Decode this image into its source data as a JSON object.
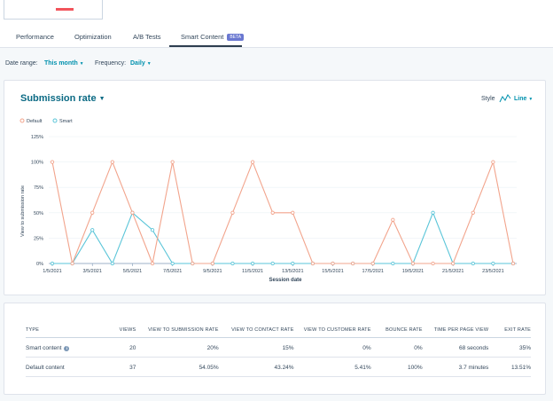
{
  "tabs": [
    {
      "label": "Performance"
    },
    {
      "label": "Optimization"
    },
    {
      "label": "A/B Tests"
    },
    {
      "label": "Smart Content",
      "badge": "BETA"
    }
  ],
  "filters": {
    "date_range_label": "Date range:",
    "date_range_value": "This month",
    "frequency_label": "Frequency:",
    "frequency_value": "Daily"
  },
  "chart_header": {
    "title": "Submission rate",
    "style_label": "Style",
    "style_value": "Line"
  },
  "colors": {
    "default_series": "#f2a48c",
    "smart_series": "#5ac5d8",
    "link": "#0091ae"
  },
  "chart_data": {
    "type": "line",
    "xlabel": "Session date",
    "ylabel": "View to submission rate",
    "ylim": [
      0,
      125
    ],
    "yticks": [
      "0%",
      "25%",
      "50%",
      "75%",
      "100%",
      "125%"
    ],
    "legend_position": "top-left",
    "x": [
      "1/5/2021",
      "2/5/2021",
      "3/5/2021",
      "4/5/2021",
      "5/5/2021",
      "6/5/2021",
      "7/5/2021",
      "8/5/2021",
      "9/5/2021",
      "10/5/2021",
      "11/5/2021",
      "12/5/2021",
      "13/5/2021",
      "14/5/2021",
      "15/5/2021",
      "16/5/2021",
      "17/5/2021",
      "18/5/2021",
      "19/5/2021",
      "20/5/2021",
      "21/5/2021",
      "22/5/2021",
      "23/5/2021",
      "24/5/2021"
    ],
    "xtick_labels": [
      "1/5/2021",
      "3/5/2021",
      "5/5/2021",
      "7/5/2021",
      "9/5/2021",
      "11/5/2021",
      "13/5/2021",
      "15/5/2021",
      "17/5/2021",
      "19/5/2021",
      "21/5/2021",
      "23/5/2021"
    ],
    "series": [
      {
        "name": "Default",
        "color": "#f2a48c",
        "values": [
          100,
          0,
          50,
          100,
          50,
          0,
          100,
          0,
          0,
          50,
          100,
          50,
          50,
          0,
          0,
          0,
          0,
          43,
          0,
          0,
          0,
          50,
          100,
          0
        ]
      },
      {
        "name": "Smart",
        "color": "#5ac5d8",
        "values": [
          0,
          0,
          33,
          0,
          50,
          33,
          0,
          0,
          0,
          0,
          0,
          0,
          0,
          0,
          0,
          0,
          0,
          0,
          0,
          50,
          0,
          0,
          0,
          0
        ]
      }
    ]
  },
  "table": {
    "headers": [
      "TYPE",
      "VIEWS",
      "VIEW TO SUBMISSION RATE",
      "VIEW TO CONTACT RATE",
      "VIEW TO CUSTOMER RATE",
      "BOUNCE RATE",
      "TIME PER PAGE VIEW",
      "EXIT RATE"
    ],
    "rows": [
      {
        "type": "Smart content",
        "views": "20",
        "submission": "20%",
        "contact": "15%",
        "customer": "0%",
        "bounce": "0%",
        "time": "68 seconds",
        "exit": "35%"
      },
      {
        "type": "Default content",
        "views": "37",
        "submission": "54.05%",
        "contact": "43.24%",
        "customer": "5.41%",
        "bounce": "100%",
        "time": "3.7 minutes",
        "exit": "13.51%"
      }
    ]
  },
  "icons": {
    "info": "i"
  }
}
